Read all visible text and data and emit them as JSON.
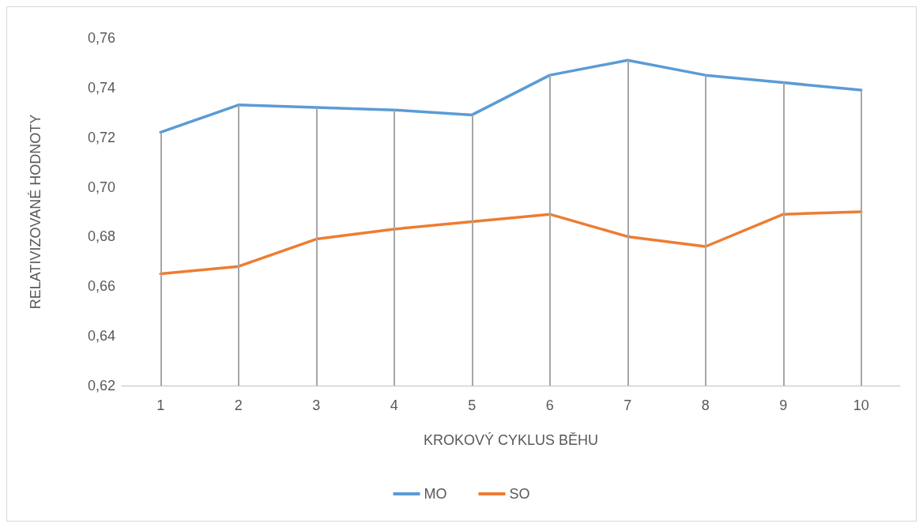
{
  "chart_data": {
    "type": "line",
    "xlabel": "KROKOVÝ CYKLUS BĚHU",
    "ylabel": "RELATIVIZOVANÉ HODNOTY",
    "categories": [
      "1",
      "2",
      "3",
      "4",
      "5",
      "6",
      "7",
      "8",
      "9",
      "10"
    ],
    "series": [
      {
        "name": "MO",
        "color": "#5b9bd5",
        "values": [
          0.722,
          0.733,
          0.732,
          0.731,
          0.729,
          0.745,
          0.751,
          0.745,
          0.742,
          0.739
        ]
      },
      {
        "name": "SO",
        "color": "#ed7d31",
        "values": [
          0.665,
          0.668,
          0.679,
          0.683,
          0.686,
          0.689,
          0.68,
          0.676,
          0.689,
          0.69
        ]
      }
    ],
    "ylim": [
      0.62,
      0.76
    ],
    "yticks": [
      {
        "value": 0.62,
        "label": "0,62"
      },
      {
        "value": 0.64,
        "label": "0,64"
      },
      {
        "value": 0.66,
        "label": "0,66"
      },
      {
        "value": 0.68,
        "label": "0,68"
      },
      {
        "value": 0.7,
        "label": "0,70"
      },
      {
        "value": 0.72,
        "label": "0,72"
      },
      {
        "value": 0.74,
        "label": "0,74"
      },
      {
        "value": 0.76,
        "label": "0,76"
      }
    ],
    "grid": "x",
    "legend": "bottom",
    "marker": "none",
    "line_style": "solid"
  }
}
